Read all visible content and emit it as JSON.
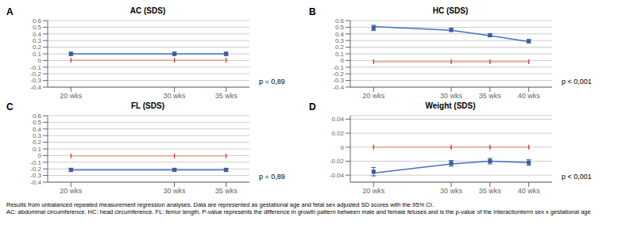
{
  "chart_data": [
    {
      "type": "scatter",
      "label": "A",
      "title": "AC (SDS)",
      "x": [
        20,
        30,
        35
      ],
      "xlim": [
        17.75,
        37.25
      ],
      "xticks": [
        {
          "value": 20,
          "label": "20 wks"
        },
        {
          "value": 30,
          "label": "30 wks"
        },
        {
          "value": 35,
          "label": "35 wks"
        }
      ],
      "ylim": [
        -0.4,
        0.6
      ],
      "yticks": [
        -0.4,
        -0.3,
        -0.2,
        -0.1,
        0,
        0.1,
        0.2,
        0.3,
        0.4,
        0.5,
        0.6
      ],
      "grid": true,
      "annotations": [
        "p = 0,89"
      ],
      "series": [
        {
          "type": "line",
          "color": "#4472C4",
          "values": [
            0.1,
            0.1,
            0.1
          ]
        },
        {
          "type": "line",
          "color": "#E8A090",
          "values": [
            0.005,
            0.005,
            0.005
          ]
        },
        {
          "type": "scatter",
          "color": "#3A5BA0",
          "marker": "square",
          "values": [
            0.1,
            0.1,
            0.1
          ],
          "errors": [
            0.025,
            0.025,
            0.025
          ]
        },
        {
          "type": "scatter",
          "color": "#CC3333",
          "marker": "tick",
          "values": [
            0.005,
            0.005,
            0.005
          ],
          "errors": [
            0.008,
            0.008,
            0.008
          ]
        }
      ]
    },
    {
      "type": "scatter",
      "label": "B",
      "title": "HC (SDS)",
      "x": [
        20,
        30,
        35,
        40
      ],
      "xlim": [
        17,
        43
      ],
      "xticks": [
        {
          "value": 20,
          "label": "20 wks"
        },
        {
          "value": 30,
          "label": "30 wks"
        },
        {
          "value": 35,
          "label": "35 wks"
        },
        {
          "value": 40,
          "label": "40 wks"
        }
      ],
      "ylim": [
        -0.4,
        0.6
      ],
      "yticks": [
        -0.4,
        -0.3,
        -0.2,
        -0.1,
        0,
        0.1,
        0.2,
        0.3,
        0.4,
        0.5,
        0.6
      ],
      "grid": true,
      "annotations": [
        "p < 0,001"
      ],
      "series": [
        {
          "type": "line",
          "color": "#4472C4",
          "values": [
            0.51,
            0.455,
            0.375,
            0.285
          ]
        },
        {
          "type": "line",
          "color": "#E8A090",
          "values": [
            -0.02,
            -0.02,
            -0.02,
            -0.02
          ]
        },
        {
          "type": "scatter",
          "color": "#3A5BA0",
          "marker": "square",
          "values": [
            0.49,
            0.46,
            0.38,
            0.29
          ],
          "errors": [
            0.04,
            0.025,
            0.025,
            0.025
          ]
        },
        {
          "type": "scatter",
          "color": "#CC3333",
          "marker": "tick",
          "values": [
            -0.02,
            -0.02,
            -0.02,
            -0.02
          ],
          "errors": [
            0.008,
            0.008,
            0.008,
            0.008
          ]
        }
      ]
    },
    {
      "type": "scatter",
      "label": "C",
      "title": "FL (SDS)",
      "x": [
        20,
        30,
        35
      ],
      "xlim": [
        17.75,
        37.25
      ],
      "xticks": [
        {
          "value": 20,
          "label": "20 wks"
        },
        {
          "value": 30,
          "label": "30 wks"
        },
        {
          "value": 35,
          "label": "35 wks"
        }
      ],
      "ylim": [
        -0.4,
        0.6
      ],
      "yticks": [
        -0.4,
        -0.3,
        -0.2,
        -0.1,
        0,
        0.1,
        0.2,
        0.3,
        0.4,
        0.5,
        0.6
      ],
      "grid": true,
      "annotations": [
        "p = 0,89"
      ],
      "series": [
        {
          "type": "line",
          "color": "#4472C4",
          "values": [
            -0.215,
            -0.215,
            -0.215
          ]
        },
        {
          "type": "line",
          "color": "#E8A090",
          "values": [
            -0.005,
            -0.005,
            -0.005
          ]
        },
        {
          "type": "scatter",
          "color": "#3A5BA0",
          "marker": "square",
          "values": [
            -0.215,
            -0.215,
            -0.215
          ],
          "errors": [
            0.025,
            0.025,
            0.025
          ]
        },
        {
          "type": "scatter",
          "color": "#CC3333",
          "marker": "tick",
          "values": [
            -0.005,
            -0.005,
            -0.005
          ],
          "errors": [
            0.008,
            0.008,
            0.008
          ]
        }
      ]
    },
    {
      "type": "scatter",
      "label": "D",
      "title": "Weight (SDS)",
      "x": [
        20,
        30,
        35,
        40
      ],
      "xlim": [
        17,
        43
      ],
      "xticks": [
        {
          "value": 20,
          "label": "20 wks"
        },
        {
          "value": 30,
          "label": "30 wks"
        },
        {
          "value": 35,
          "label": "35 wks"
        },
        {
          "value": 40,
          "label": "40 wks"
        }
      ],
      "ylim": [
        -0.05,
        0.045
      ],
      "yticks": [
        -0.04,
        -0.02,
        0,
        0.02,
        0.04
      ],
      "grid": true,
      "annotations": [
        "p < 0,001"
      ],
      "series": [
        {
          "type": "line",
          "color": "#4472C4",
          "values": [
            -0.037,
            -0.024,
            -0.02,
            -0.022
          ]
        },
        {
          "type": "line",
          "color": "#E8A090",
          "values": [
            0.0,
            0.0,
            0.0,
            0.0
          ]
        },
        {
          "type": "scatter",
          "color": "#3A5BA0",
          "marker": "square",
          "values": [
            -0.035,
            -0.023,
            -0.02,
            -0.022
          ],
          "errors": [
            0.006,
            0.004,
            0.004,
            0.004
          ]
        },
        {
          "type": "scatter",
          "color": "#CC3333",
          "marker": "tick",
          "values": [
            0.0,
            0.0,
            0.0,
            0.0
          ],
          "errors": [
            0.002,
            0.002,
            0.002,
            0.002
          ]
        }
      ]
    }
  ],
  "annotations": [
    "Results from unbalanced repeated measurement regression analyses. Data are represented as gestational age and fetal sex adjusted SD scores with the 95% CI.",
    "AC: abdominal circumference. HC: head circumference. FL: femur length. P-value represents the difference in growth pattern between male and female fetuses and is the p-value of the Interactionterm sex x gestational age"
  ]
}
